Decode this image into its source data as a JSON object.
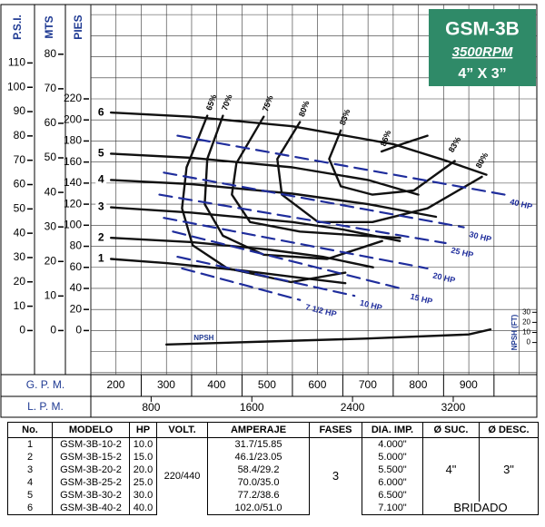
{
  "chart_data": {
    "type": "line",
    "title": "GSM-3B",
    "subtitle": "3500RPM",
    "caption": "4” X 3”",
    "xlabel": "G. P. M.",
    "xlim": [
      100,
      985
    ],
    "xticks": [
      200,
      300,
      400,
      500,
      600,
      700,
      800,
      900
    ],
    "xgrid": [
      100,
      150,
      200,
      250,
      300,
      350,
      400,
      450,
      500,
      550,
      600,
      650,
      700,
      750,
      800,
      850,
      900,
      950
    ],
    "x_lpm": {
      "label": "L. P. M.",
      "lim": [
        321,
        3864
      ],
      "ticks": [
        800,
        1600,
        2400,
        3200
      ]
    },
    "ylabel": "PIES",
    "ylim": [
      -41,
      307
    ],
    "yticks": [
      0,
      20,
      40,
      60,
      80,
      100,
      120,
      140,
      160,
      180,
      200,
      220
    ],
    "ygrid": [
      -40,
      -20,
      0,
      20,
      40,
      60,
      80,
      100,
      120,
      140,
      160,
      180,
      200,
      220,
      240,
      260,
      280,
      300
    ],
    "y_mts": {
      "label": "MTS",
      "lim": [
        -12.5,
        93.6
      ],
      "ticks": [
        0,
        10,
        20,
        30,
        40,
        50,
        60,
        70,
        80
      ]
    },
    "y_psi": {
      "label": "P.S.I.",
      "lim": [
        -17.75,
        132.9
      ],
      "ticks": [
        0,
        10,
        20,
        30,
        40,
        50,
        60,
        70,
        80,
        90,
        100,
        110
      ]
    },
    "y2label": "NPSH (FT)",
    "y2lim": [
      -31,
      333
    ],
    "y2ticks": [
      0,
      10,
      20,
      30
    ],
    "grid": true,
    "series": [
      {
        "name": "6",
        "color": "#111111",
        "x": [
          140,
          300,
          500,
          700,
          800,
          885
        ],
        "values": [
          207,
          203,
          194,
          177,
          162,
          148
        ]
      },
      {
        "name": "5",
        "color": "#111111",
        "x": [
          140,
          300,
          500,
          650,
          750
        ],
        "values": [
          168,
          164,
          155,
          143,
          129
        ]
      },
      {
        "name": "4",
        "color": "#111111",
        "x": [
          140,
          300,
          500,
          650,
          785
        ],
        "values": [
          143,
          139,
          130,
          120,
          108
        ]
      },
      {
        "name": "3",
        "color": "#111111",
        "x": [
          140,
          300,
          500,
          600,
          713
        ],
        "values": [
          117,
          112,
          103,
          96,
          85
        ]
      },
      {
        "name": "2",
        "color": "#111111",
        "x": [
          140,
          300,
          450,
          560,
          660
        ],
        "values": [
          88,
          84,
          77,
          70,
          60
        ]
      },
      {
        "name": "1",
        "color": "#111111",
        "x": [
          140,
          250,
          400,
          500,
          605
        ],
        "values": [
          68,
          64,
          57,
          51,
          45
        ]
      },
      {
        "name": "65%",
        "color": "#111111",
        "x": [
          331,
          290,
          281,
          302,
          371,
          497,
          605
        ],
        "values": [
          204,
          155,
          116,
          81,
          59,
          46,
          55
        ]
      },
      {
        "name": "70%",
        "color": "#111111",
        "x": [
          362,
          331,
          326,
          362,
          443,
          569,
          678
        ],
        "values": [
          204,
          163,
          120,
          90,
          72,
          68,
          85
        ]
      },
      {
        "name": "75%",
        "color": "#111111",
        "x": [
          443,
          389,
          380,
          416,
          515,
          641,
          714
        ],
        "values": [
          203,
          159,
          129,
          103,
          94,
          90,
          88
        ]
      },
      {
        "name": "80%",
        "color": "#111111",
        "x": [
          515,
          470,
          479,
          551,
          659,
          768,
          876
        ],
        "values": [
          198,
          163,
          129,
          103,
          103,
          116,
          146
        ]
      },
      {
        "name": "83%",
        "color": "#111111",
        "x": [
          596,
          573,
          596,
          659,
          741,
          822
        ],
        "values": [
          190,
          163,
          137,
          129,
          133,
          161
        ]
      },
      {
        "name": "86%",
        "color": "#111111",
        "x": [
          677,
          723,
          768
        ],
        "values": [
          170,
          178,
          185
        ]
      },
      {
        "name": "40 HP",
        "color": "#1f2d9c",
        "dash": true,
        "x": [
          272,
          921
        ],
        "values": [
          185,
          129
        ]
      },
      {
        "name": "30 HP",
        "color": "#1f2d9c",
        "dash": true,
        "x": [
          245,
          840
        ],
        "values": [
          150,
          98
        ]
      },
      {
        "name": "25 HP",
        "color": "#1f2d9c",
        "dash": true,
        "x": [
          236,
          804
        ],
        "values": [
          129,
          83
        ]
      },
      {
        "name": "20 HP",
        "color": "#1f2d9c",
        "dash": true,
        "x": [
          245,
          768
        ],
        "values": [
          107,
          59
        ]
      },
      {
        "name": "15 HP",
        "color": "#1f2d9c",
        "dash": true,
        "x": [
          263,
          723
        ],
        "values": [
          94,
          39
        ]
      },
      {
        "name": "10 HP",
        "color": "#1f2d9c",
        "dash": true,
        "x": [
          272,
          623
        ],
        "values": [
          70,
          33
        ]
      },
      {
        "name": "7 1/2 HP",
        "color": "#1f2d9c",
        "dash": true,
        "x": [
          281,
          515
        ],
        "values": [
          59,
          29
        ]
      },
      {
        "name": "NPSH",
        "color": "#111111",
        "axis": "y2",
        "x": [
          250,
          450,
          650,
          850,
          893
        ],
        "values": [
          -2,
          1,
          4,
          8,
          13
        ]
      }
    ]
  },
  "table": {
    "header": [
      "No.",
      "MODELO",
      "HP",
      "VOLT.",
      "AMPERAJE",
      "FASES",
      "DIA. IMP.",
      "Ø SUC.",
      "Ø DESC."
    ],
    "rows": [
      [
        "1",
        "GSM-3B-10-2",
        "10.0",
        "31.7/15.85",
        "4.000\""
      ],
      [
        "2",
        "GSM-3B-15-2",
        "15.0",
        "46.1/23.05",
        "5.000\""
      ],
      [
        "3",
        "GSM-3B-20-2",
        "20.0",
        "58.4/29.2",
        "5.500\""
      ],
      [
        "4",
        "GSM-3B-25-2",
        "25.0",
        "70.0/35.0",
        "6.000\""
      ],
      [
        "5",
        "GSM-3B-30-2",
        "30.0",
        "77.2/38.6",
        "6.500\""
      ],
      [
        "6",
        "GSM-3B-40-2",
        "40.0",
        "102.0/51.0",
        "7.100\""
      ]
    ],
    "volt": "220/440",
    "phases": "3",
    "suction": "4\"",
    "discharge": "3\"",
    "connection": "BRIDADO"
  }
}
